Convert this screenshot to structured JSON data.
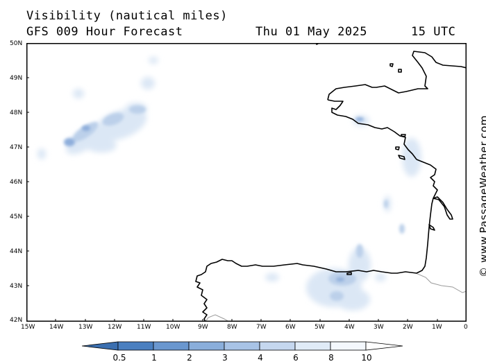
{
  "header": {
    "title": "Visibility (nautical miles)",
    "subtitle": "GFS 009 Hour Forecast",
    "date": "Thu 01 May 2025",
    "time": "15 UTC"
  },
  "credit": "© www.PassageWeather.com",
  "axes": {
    "lat_labels": [
      "50N",
      "49N",
      "48N",
      "47N",
      "46N",
      "45N",
      "44N",
      "43N",
      "42N"
    ],
    "lon_labels": [
      "15W",
      "14W",
      "13W",
      "12W",
      "11W",
      "10W",
      "9W",
      "8W",
      "7W",
      "6W",
      "5W",
      "4W",
      "3W",
      "2W",
      "1W",
      "0"
    ]
  },
  "legend": {
    "labels": [
      "0.5",
      "1",
      "2",
      "3",
      "4",
      "6",
      "8",
      "10"
    ],
    "colors": [
      "#3b6fb0",
      "#4a7fc0",
      "#6a97cf",
      "#8aaedb",
      "#a8c3e6",
      "#c5d7ef",
      "#e0ebf7",
      "#f4f8fd",
      "#ffffff"
    ]
  },
  "colors": {
    "coast": "#000000",
    "border": "#9a9a9a",
    "frame": "#000000"
  }
}
